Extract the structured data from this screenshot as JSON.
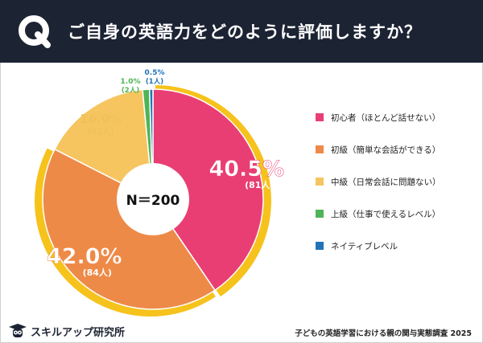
{
  "header": {
    "q_mark": "Q",
    "title": "ご自身の英語力をどのように評価しますか？"
  },
  "chart_data": {
    "type": "pie",
    "center_label": "N＝200",
    "slices": [
      {
        "label": "初心者（ほとんど話せない）",
        "value": 40.5,
        "value_label": "40.5%",
        "count_label": "(81人)",
        "color": "#e93e74"
      },
      {
        "label": "初級（簡単な会話ができる）",
        "value": 42.0,
        "value_label": "42.0%",
        "count_label": "(84人)",
        "color": "#ee8a48"
      },
      {
        "label": "中級（日常会話に問題ない）",
        "value": 16.0,
        "value_label": "16.0%",
        "count_label": "(32人)",
        "color": "#f6c560"
      },
      {
        "label": "上級（仕事で使えるレベル）",
        "value": 1.0,
        "value_label": "1.0%",
        "count_label": "(2人)",
        "color": "#4fb455"
      },
      {
        "label": "ネイティブレベル",
        "value": 0.5,
        "value_label": "0.5%",
        "count_label": "(1人)",
        "color": "#2174b8"
      }
    ],
    "highlight_ring_color": "#f6c21c"
  },
  "footer": {
    "logo_text": "スキルアップ研究所",
    "source": "子どもの英語学習における親の関与実態調査 2025"
  },
  "colors": {
    "header_bg": "#1c2333"
  }
}
